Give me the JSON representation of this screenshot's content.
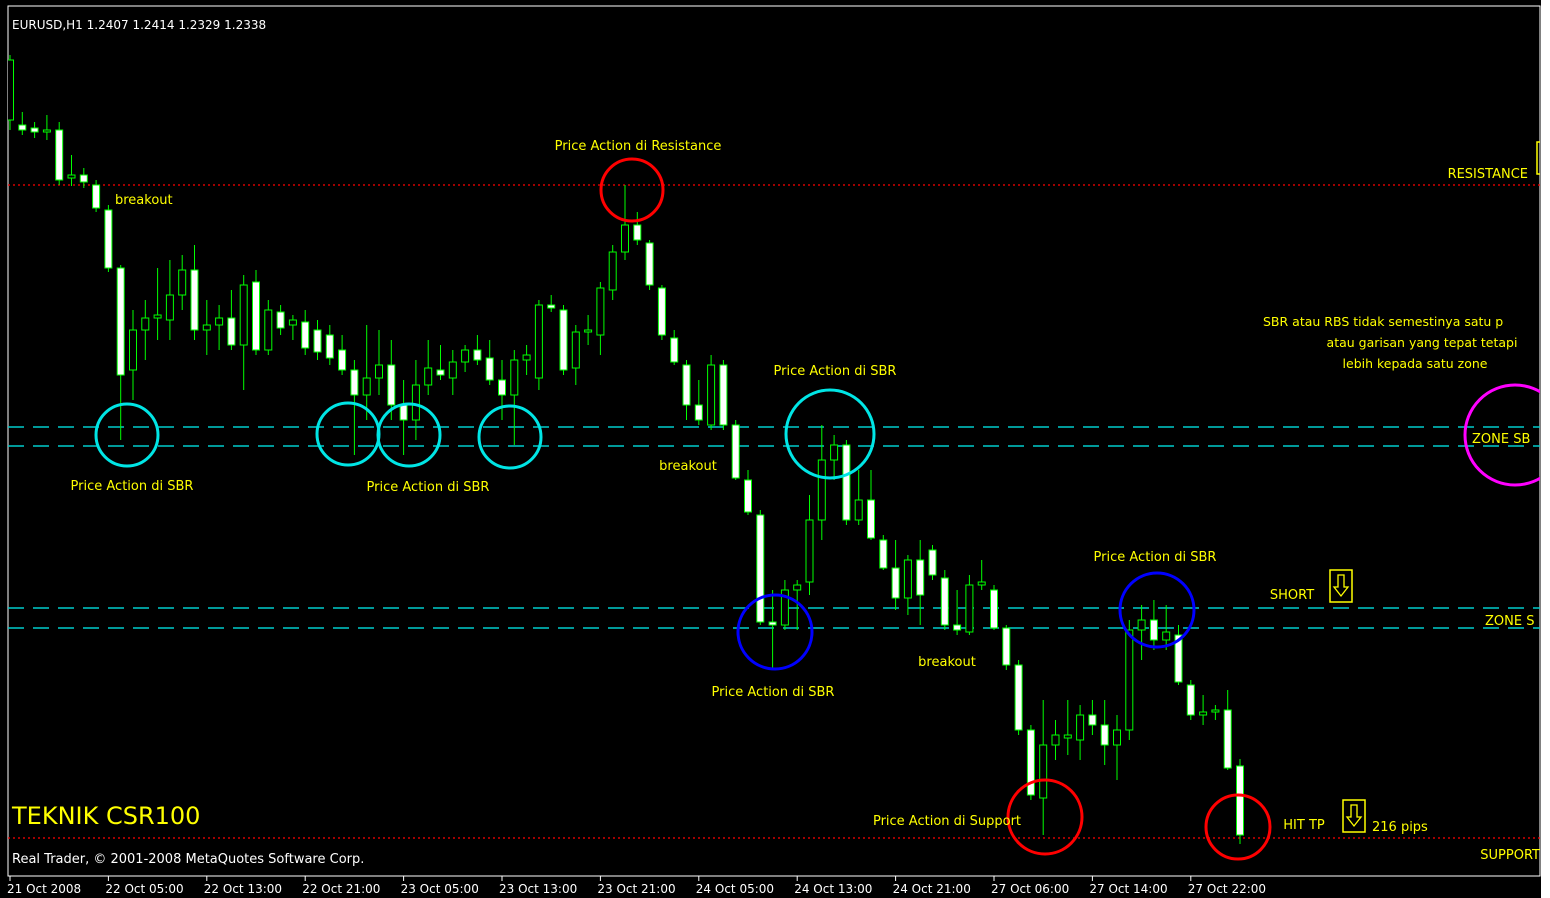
{
  "chart_data": {
    "type": "candlestick",
    "symbol": "EURUSD,H1",
    "watermark": "TEKNIK CSR100",
    "copyright": "Real Trader, © 2001-2008 MetaQuotes Software Corp.",
    "categories": [
      "21 Oct 2008",
      null,
      null,
      null,
      null,
      null,
      null,
      null,
      "22 Oct 05:00",
      null,
      null,
      null,
      null,
      null,
      null,
      null,
      "22 Oct 13:00",
      null,
      null,
      null,
      null,
      null,
      null,
      null,
      "22 Oct 21:00",
      null,
      null,
      null,
      null,
      null,
      null,
      null,
      "23 Oct 05:00",
      null,
      null,
      null,
      null,
      null,
      null,
      null,
      "23 Oct 13:00",
      null,
      null,
      null,
      null,
      null,
      null,
      null,
      "23 Oct 21:00",
      null,
      null,
      null,
      null,
      null,
      null,
      null,
      "24 Oct 05:00",
      null,
      null,
      null,
      null,
      null,
      null,
      null,
      "24 Oct 13:00",
      null,
      null,
      null,
      null,
      null,
      null,
      null,
      "24 Oct 21:00",
      null,
      null,
      null,
      null,
      null,
      null,
      null,
      "27 Oct 06:00",
      null,
      null,
      null,
      null,
      null,
      null,
      null,
      "27 Oct 14:00",
      null,
      null,
      null,
      null,
      null,
      null,
      null,
      "27 Oct 22:00",
      null,
      null,
      null,
      null
    ],
    "open": [
      1.3053,
      1.3048,
      1.3045,
      1.3041,
      1.3043,
      1.2995,
      1.2998,
      1.2988,
      1.2963,
      1.2905,
      1.2803,
      1.2843,
      1.2855,
      1.2853,
      1.2878,
      1.2903,
      1.2843,
      1.2848,
      1.2855,
      1.2828,
      1.2891,
      1.2823,
      1.2861,
      1.2848,
      1.2851,
      1.2843,
      1.2838,
      1.2823,
      1.2803,
      1.2778,
      1.2795,
      1.2808,
      1.2768,
      1.2753,
      1.2788,
      1.2803,
      1.2795,
      1.2811,
      1.2823,
      1.2815,
      1.2793,
      1.2778,
      1.2813,
      1.2795,
      1.2868,
      1.2863,
      1.2805,
      1.2841,
      1.2838,
      1.2883,
      1.2921,
      1.2948,
      1.293,
      1.2885,
      1.2835,
      1.2808,
      1.2768,
      1.2748,
      1.2808,
      1.2748,
      1.2693,
      1.2658,
      1.2551,
      1.2548,
      1.2583,
      1.2591,
      1.2653,
      1.2713,
      1.2728,
      1.2653,
      1.2673,
      1.2633,
      1.2605,
      1.2575,
      1.2613,
      1.2623,
      1.2595,
      1.2548,
      1.2541,
      1.2588,
      1.2583,
      1.2545,
      1.2508,
      1.2443,
      1.2375,
      1.2428,
      1.2435,
      1.2433,
      1.2458,
      1.2448,
      1.2428,
      1.2443,
      1.2543,
      1.2553,
      1.2533,
      1.2538,
      1.2488,
      1.2458,
      1.2461,
      1.2463,
      1.2407
    ],
    "high": [
      1.3118,
      1.3061,
      1.3051,
      1.3058,
      1.3051,
      1.3018,
      1.3005,
      1.2993,
      1.2968,
      1.2908,
      1.2863,
      1.2873,
      1.2905,
      1.2913,
      1.2918,
      1.2928,
      1.2873,
      1.2868,
      1.2883,
      1.2898,
      1.2903,
      1.2873,
      1.2868,
      1.2858,
      1.2863,
      1.2853,
      1.2848,
      1.2838,
      1.2813,
      1.2848,
      1.2843,
      1.2833,
      1.2793,
      1.2813,
      1.2833,
      1.2828,
      1.2823,
      1.2828,
      1.2838,
      1.2833,
      1.2813,
      1.2823,
      1.2828,
      1.2873,
      1.2878,
      1.2868,
      1.2848,
      1.2858,
      1.2891,
      1.2928,
      1.2988,
      1.2961,
      1.2933,
      1.2888,
      1.2843,
      1.2813,
      1.2793,
      1.2818,
      1.2813,
      1.2753,
      1.2703,
      1.2663,
      1.2583,
      1.2593,
      1.2593,
      1.2678,
      1.2748,
      1.2738,
      1.2733,
      1.2703,
      1.2703,
      1.2638,
      1.2633,
      1.2618,
      1.2633,
      1.2628,
      1.2603,
      1.2583,
      1.2598,
      1.2613,
      1.2588,
      1.2548,
      1.2513,
      1.2448,
      1.2473,
      1.2453,
      1.2473,
      1.2468,
      1.2473,
      1.2473,
      1.2458,
      1.2553,
      1.2568,
      1.2573,
      1.2568,
      1.2548,
      1.2493,
      1.2478,
      1.2468,
      1.2483,
      1.2414
    ],
    "low": [
      1.3043,
      1.3038,
      1.3035,
      1.3033,
      1.2988,
      1.2987,
      1.2985,
      1.2961,
      1.2901,
      1.2733,
      1.2773,
      1.2813,
      1.2833,
      1.2833,
      1.2863,
      1.2833,
      1.2818,
      1.2823,
      1.2823,
      1.2783,
      1.2818,
      1.2818,
      1.2838,
      1.2833,
      1.2818,
      1.2813,
      1.2808,
      1.2798,
      1.2718,
      1.2753,
      1.2778,
      1.2753,
      1.2718,
      1.2733,
      1.2778,
      1.2793,
      1.2778,
      1.2801,
      1.2808,
      1.2788,
      1.2753,
      1.2728,
      1.2798,
      1.2783,
      1.2861,
      1.2798,
      1.2788,
      1.2828,
      1.2818,
      1.2873,
      1.2913,
      1.2928,
      1.2883,
      1.2833,
      1.2808,
      1.2753,
      1.2748,
      1.2743,
      1.2743,
      1.2693,
      1.2658,
      1.2548,
      1.2503,
      1.2543,
      1.2543,
      1.2578,
      1.2633,
      1.2693,
      1.2648,
      1.2648,
      1.2633,
      1.2603,
      1.2563,
      1.2558,
      1.2548,
      1.2593,
      1.2543,
      1.2538,
      1.2538,
      1.2583,
      1.2543,
      1.2503,
      1.2438,
      1.2373,
      1.2338,
      1.2413,
      1.2418,
      1.2413,
      1.2438,
      1.2408,
      1.2393,
      1.2433,
      1.2513,
      1.2523,
      1.2523,
      1.2488,
      1.2453,
      1.2448,
      1.2453,
      1.2403,
      1.2329
    ],
    "close": [
      1.3113,
      1.3043,
      1.3041,
      1.3043,
      1.2993,
      1.2998,
      1.2991,
      1.2965,
      1.2905,
      1.2798,
      1.2843,
      1.2855,
      1.2858,
      1.2878,
      1.2903,
      1.2843,
      1.2848,
      1.2855,
      1.2828,
      1.2888,
      1.2823,
      1.2863,
      1.2845,
      1.2853,
      1.2825,
      1.2821,
      1.2815,
      1.2803,
      1.2778,
      1.2795,
      1.2808,
      1.2768,
      1.2753,
      1.2788,
      1.2805,
      1.2798,
      1.2811,
      1.2823,
      1.2813,
      1.2793,
      1.2778,
      1.2813,
      1.2818,
      1.2868,
      1.2865,
      1.2803,
      1.2841,
      1.2843,
      1.2885,
      1.2921,
      1.2948,
      1.2933,
      1.2888,
      1.2838,
      1.2811,
      1.2768,
      1.2753,
      1.2808,
      1.2748,
      1.2695,
      1.2661,
      1.2551,
      1.2548,
      1.2583,
      1.2588,
      1.2653,
      1.2713,
      1.2728,
      1.2653,
      1.2673,
      1.2635,
      1.2605,
      1.2575,
      1.2613,
      1.2578,
      1.2598,
      1.2548,
      1.2543,
      1.2588,
      1.2591,
      1.2545,
      1.2508,
      1.2443,
      1.2378,
      1.2428,
      1.2438,
      1.2438,
      1.2458,
      1.2448,
      1.2428,
      1.2443,
      1.2543,
      1.2553,
      1.2533,
      1.2541,
      1.2491,
      1.2458,
      1.2461,
      1.2463,
      1.2405,
      1.2338
    ],
    "ylim": [
      1.2298,
      1.3165
    ],
    "up_color": "#000000",
    "down_color": "#ffffff",
    "wick_color": "#00ff00",
    "resistance": {
      "label": "RESISTANCE",
      "value": 1.2988,
      "color": "#ff0000"
    },
    "support": {
      "label": "SUPPORT",
      "value": 1.2335,
      "color": "#ff0000"
    },
    "zones": [
      {
        "label": "ZONE SB",
        "values": [
          1.2746,
          1.2727
        ],
        "color": "#00cccc"
      },
      {
        "label": "ZONE S",
        "values": [
          1.2565,
          1.2545
        ],
        "color": "#00cccc"
      }
    ],
    "annotations": [
      "breakout",
      "Price Action di Resistance",
      "Price Action di SBR",
      "Price Action di SBR",
      "Price Action di SBR",
      "breakout",
      "Price Action di SBR",
      "breakout",
      "Price Action di SBR",
      "SHORT",
      "Price Action di Support",
      "HIT TP",
      "216 pips"
    ],
    "note": [
      "SBR atau RBS tidak semestinya satu p",
      "atau garisan yang tepat  tetapi",
      "lebih kepada  satu zone"
    ]
  }
}
